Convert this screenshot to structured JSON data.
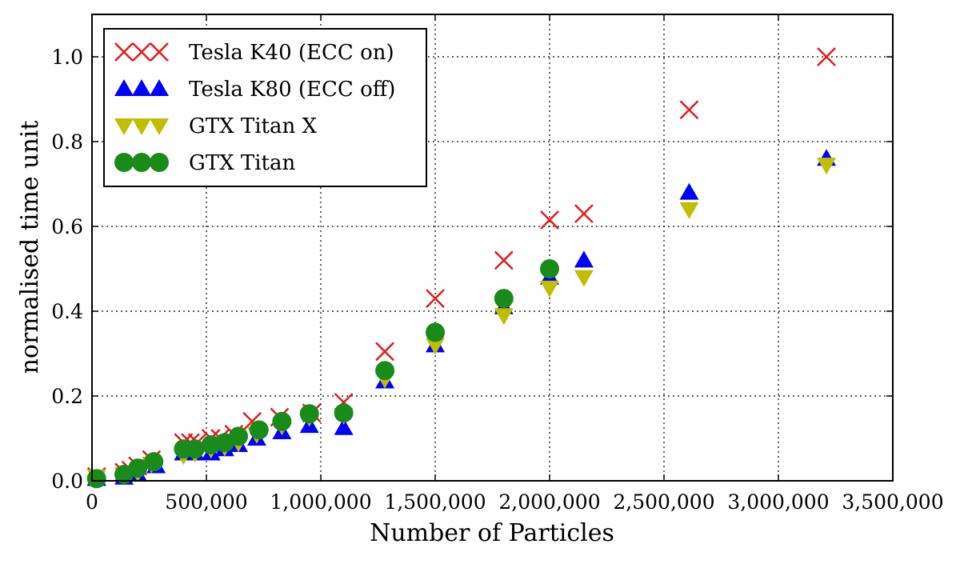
{
  "chart_data": {
    "type": "scatter",
    "title": "",
    "xlabel": "Number of Particles",
    "ylabel": "normalised time unit",
    "xlim": [
      0,
      3500000
    ],
    "ylim": [
      0,
      1.1
    ],
    "x_ticks": [
      0,
      500000,
      1000000,
      1500000,
      2000000,
      2500000,
      3000000,
      3500000
    ],
    "x_tick_labels": [
      "0",
      "500,000",
      "1,000,000",
      "1,500,000",
      "2,000,000",
      "2,500,000",
      "3,000,000",
      "3,500,000"
    ],
    "y_ticks": [
      0.0,
      0.2,
      0.4,
      0.6,
      0.8,
      1.0
    ],
    "y_tick_labels": [
      "0.0",
      "0.2",
      "0.4",
      "0.6",
      "0.8",
      "1.0"
    ],
    "grid": true,
    "legend_position": "top-left",
    "series": [
      {
        "name": "Tesla K40 (ECC on)",
        "marker": "x",
        "color": "#e31a1c",
        "points": [
          [
            20000,
            0.01
          ],
          [
            140000,
            0.02
          ],
          [
            170000,
            0.025
          ],
          [
            200000,
            0.035
          ],
          [
            260000,
            0.05
          ],
          [
            400000,
            0.09
          ],
          [
            430000,
            0.09
          ],
          [
            460000,
            0.09
          ],
          [
            520000,
            0.1
          ],
          [
            560000,
            0.1
          ],
          [
            620000,
            0.11
          ],
          [
            700000,
            0.14
          ],
          [
            820000,
            0.15
          ],
          [
            960000,
            0.16
          ],
          [
            1100000,
            0.185
          ],
          [
            1280000,
            0.305
          ],
          [
            1500000,
            0.43
          ],
          [
            1800000,
            0.52
          ],
          [
            2000000,
            0.615
          ],
          [
            2150000,
            0.63
          ],
          [
            2610000,
            0.875
          ],
          [
            3210000,
            1.0
          ]
        ]
      },
      {
        "name": "Tesla K80 (ECC off)",
        "marker": "triangle-up",
        "color": "#0000ff",
        "points": [
          [
            20000,
            0.005
          ],
          [
            140000,
            0.008
          ],
          [
            200000,
            0.015
          ],
          [
            280000,
            0.035
          ],
          [
            400000,
            0.065
          ],
          [
            450000,
            0.065
          ],
          [
            520000,
            0.065
          ],
          [
            580000,
            0.075
          ],
          [
            640000,
            0.085
          ],
          [
            720000,
            0.1
          ],
          [
            830000,
            0.115
          ],
          [
            950000,
            0.13
          ],
          [
            1100000,
            0.125
          ],
          [
            1280000,
            0.235
          ],
          [
            1500000,
            0.32
          ],
          [
            1800000,
            0.41
          ],
          [
            2000000,
            0.48
          ],
          [
            2150000,
            0.52
          ],
          [
            2610000,
            0.68
          ],
          [
            3210000,
            0.76
          ]
        ]
      },
      {
        "name": "GTX Titan X",
        "marker": "triangle-down",
        "color": "#bfbf00",
        "points": [
          [
            20000,
            0.01
          ],
          [
            140000,
            0.015
          ],
          [
            200000,
            0.02
          ],
          [
            260000,
            0.04
          ],
          [
            400000,
            0.06
          ],
          [
            450000,
            0.065
          ],
          [
            520000,
            0.075
          ],
          [
            580000,
            0.08
          ],
          [
            640000,
            0.09
          ],
          [
            720000,
            0.11
          ],
          [
            830000,
            0.13
          ],
          [
            950000,
            0.15
          ],
          [
            1100000,
            0.155
          ],
          [
            1280000,
            0.24
          ],
          [
            1500000,
            0.32
          ],
          [
            1800000,
            0.39
          ],
          [
            2000000,
            0.455
          ],
          [
            2150000,
            0.48
          ],
          [
            2610000,
            0.64
          ],
          [
            3210000,
            0.745
          ]
        ]
      },
      {
        "name": "GTX Titan",
        "marker": "circle",
        "color": "#1a8a1a",
        "points": [
          [
            20000,
            0.005
          ],
          [
            140000,
            0.015
          ],
          [
            200000,
            0.03
          ],
          [
            270000,
            0.045
          ],
          [
            400000,
            0.075
          ],
          [
            450000,
            0.075
          ],
          [
            520000,
            0.085
          ],
          [
            580000,
            0.09
          ],
          [
            640000,
            0.105
          ],
          [
            730000,
            0.12
          ],
          [
            830000,
            0.14
          ],
          [
            950000,
            0.158
          ],
          [
            1100000,
            0.16
          ],
          [
            1280000,
            0.26
          ],
          [
            1500000,
            0.35
          ],
          [
            1800000,
            0.43
          ],
          [
            2000000,
            0.5
          ]
        ]
      }
    ]
  }
}
